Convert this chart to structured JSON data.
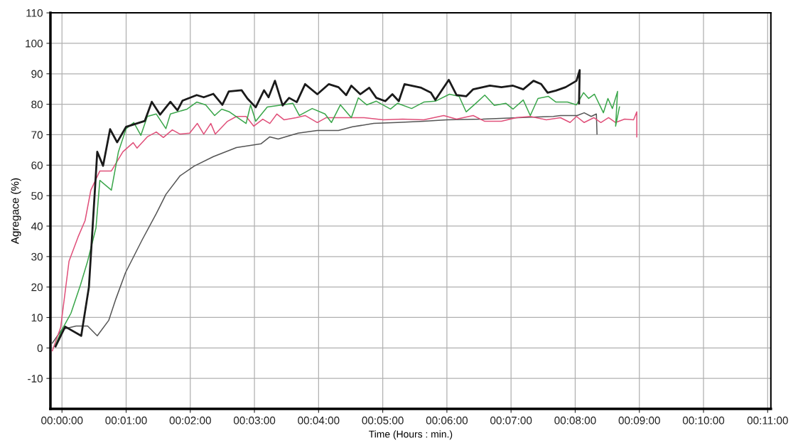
{
  "chart_data": {
    "type": "line",
    "xlabel": "Time (Hours : min.)",
    "ylabel": "Agregace (%)",
    "xlim": [
      -0.18,
      11.05
    ],
    "ylim": [
      -20,
      110
    ],
    "xticks": [
      {
        "value": 0,
        "label": "00:00:00"
      },
      {
        "value": 1,
        "label": "00:01:00"
      },
      {
        "value": 2,
        "label": "00:02:00"
      },
      {
        "value": 3,
        "label": "00:03:00"
      },
      {
        "value": 4,
        "label": "00:04:00"
      },
      {
        "value": 5,
        "label": "00:05:00"
      },
      {
        "value": 6,
        "label": "00:06:00"
      },
      {
        "value": 7,
        "label": "00:07:00"
      },
      {
        "value": 8,
        "label": "00:08:00"
      },
      {
        "value": 9,
        "label": "00:09:00"
      },
      {
        "value": 10,
        "label": "00:10:00"
      },
      {
        "value": 11,
        "label": "00:11:00"
      }
    ],
    "yticks": [
      -10,
      0,
      10,
      20,
      30,
      40,
      50,
      60,
      70,
      80,
      90,
      100,
      110
    ],
    "grid": true,
    "marker": "none",
    "line_style": "solid",
    "series": [
      {
        "color": "#555555",
        "x": [
          -0.15,
          0,
          0.22,
          0.4,
          0.55,
          0.73,
          0.84,
          0.99,
          1.25,
          1.47,
          1.62,
          1.84,
          2.06,
          2.36,
          2.72,
          3.1,
          3.24,
          3.37,
          3.68,
          3.98,
          4.31,
          4.53,
          4.86,
          5.23,
          5.64,
          6.0,
          6.56,
          7.11,
          7.66,
          7.77,
          8.03,
          8.14,
          8.25,
          8.33,
          8.34
        ],
        "values": [
          1.6,
          6.1,
          7.2,
          7.2,
          4,
          9.1,
          16.1,
          24.7,
          35.5,
          44.1,
          50.4,
          56.5,
          59.7,
          62.8,
          65.8,
          67,
          69.3,
          68.6,
          70.5,
          71.4,
          71.4,
          72.6,
          73.7,
          74,
          74.4,
          74.9,
          75.1,
          75.6,
          76,
          76.3,
          76.3,
          77.2,
          76,
          76.8,
          70.2
        ]
      },
      {
        "color": "#e0507a",
        "x": [
          -0.15,
          -0.02,
          0.11,
          0.25,
          0.36,
          0.45,
          0.59,
          0.77,
          0.95,
          1.11,
          1.17,
          1.33,
          1.47,
          1.58,
          1.72,
          1.84,
          1.99,
          2.11,
          2.21,
          2.32,
          2.39,
          2.58,
          2.72,
          2.87,
          2.99,
          3.13,
          3.24,
          3.35,
          3.46,
          3.65,
          3.79,
          3.98,
          4.12,
          4.49,
          4.71,
          5.01,
          5.31,
          5.64,
          5.95,
          6.15,
          6.41,
          6.59,
          6.85,
          7.08,
          7.3,
          7.55,
          7.77,
          7.92,
          8.02,
          8.14,
          8.29,
          8.4,
          8.52,
          8.63,
          8.77,
          8.91,
          8.96,
          8.96
        ],
        "values": [
          -0.9,
          6.8,
          28.5,
          36.4,
          41.8,
          51.8,
          58.1,
          58.1,
          64.4,
          67.4,
          65.6,
          69.3,
          70.9,
          69.1,
          71.6,
          70.2,
          70.5,
          73.7,
          70.2,
          73.7,
          70.2,
          74.4,
          76,
          76,
          72.8,
          75.1,
          73.7,
          76.8,
          74.9,
          75.6,
          76.3,
          74,
          75.6,
          75.6,
          75.6,
          74.9,
          75.1,
          74.9,
          76.3,
          75.1,
          76.3,
          74.4,
          74.4,
          75.6,
          76,
          74.9,
          75.6,
          74,
          76,
          74,
          75.6,
          74,
          75.6,
          74,
          75.1,
          74.9,
          77.5,
          69.3
        ]
      },
      {
        "color": "#3aa64a",
        "x": [
          -0.1,
          0,
          0.14,
          0.29,
          0.4,
          0.53,
          0.59,
          0.77,
          0.88,
          1.0,
          1.12,
          1.23,
          1.33,
          1.47,
          1.62,
          1.69,
          1.95,
          2.1,
          2.24,
          2.38,
          2.49,
          2.61,
          2.87,
          2.94,
          3.02,
          3.2,
          3.38,
          3.6,
          3.7,
          3.9,
          4.1,
          4.2,
          4.34,
          4.51,
          4.62,
          4.75,
          4.9,
          5.12,
          5.23,
          5.45,
          5.64,
          5.82,
          6.04,
          6.19,
          6.3,
          6.45,
          6.59,
          6.74,
          6.92,
          7.03,
          7.19,
          7.3,
          7.42,
          7.58,
          7.7,
          7.88,
          8.02,
          8.13,
          8.21,
          8.3,
          8.44,
          8.51,
          8.58,
          8.66,
          8.63,
          8.69
        ],
        "values": [
          1,
          6,
          11.4,
          20.8,
          28.5,
          39.4,
          55,
          51.8,
          64.4,
          72,
          74,
          69.8,
          76,
          76.8,
          72,
          76.8,
          78.4,
          80.7,
          79.8,
          76.3,
          78.4,
          77.5,
          73.7,
          79.8,
          74.4,
          79.1,
          79.6,
          80.3,
          76.3,
          78.6,
          76.8,
          74,
          79.8,
          75.6,
          82.1,
          79.8,
          81,
          78.4,
          80.3,
          78.6,
          80.7,
          81,
          83.3,
          82.6,
          77.5,
          80.3,
          83,
          79.6,
          80.3,
          78.4,
          81.4,
          76.3,
          81.9,
          82.6,
          80.7,
          80.7,
          79.8,
          83.8,
          81.9,
          83.3,
          77.2,
          81.9,
          78.6,
          84.2,
          72.8,
          79.1
        ]
      },
      {
        "color": "#1a1a1a",
        "x": [
          -0.1,
          0.05,
          0.3,
          0.42,
          0.55,
          0.64,
          0.75,
          0.86,
          1.0,
          1.29,
          1.4,
          1.53,
          1.69,
          1.8,
          1.88,
          2.1,
          2.21,
          2.36,
          2.5,
          2.6,
          2.8,
          2.89,
          3.02,
          3.15,
          3.22,
          3.32,
          3.44,
          3.54,
          3.66,
          3.79,
          3.98,
          4.16,
          4.31,
          4.43,
          4.51,
          4.65,
          4.79,
          4.9,
          5.04,
          5.15,
          5.25,
          5.34,
          5.6,
          5.75,
          5.82,
          6.03,
          6.15,
          6.3,
          6.41,
          6.67,
          6.85,
          7.03,
          7.19,
          7.35,
          7.47,
          7.57,
          7.7,
          7.85,
          8.02,
          8.07,
          8.06
        ],
        "values": [
          0.5,
          7,
          4,
          20,
          64.4,
          59.8,
          71.8,
          67.5,
          72.6,
          74.5,
          80.8,
          76.6,
          80.8,
          78,
          81.2,
          83,
          82.3,
          83.4,
          79.8,
          84.2,
          84.6,
          81.9,
          79,
          84.6,
          82.3,
          87.7,
          79.6,
          82.1,
          80.7,
          86.6,
          83.3,
          86.6,
          85.6,
          83,
          86.1,
          83.3,
          85.4,
          82.1,
          81,
          83.3,
          81,
          86.6,
          85.4,
          83.8,
          81.4,
          88,
          83,
          82.6,
          84.9,
          86.1,
          85.6,
          86.1,
          84.9,
          87.7,
          86.6,
          83.8,
          84.5,
          85.6,
          87.7,
          91.2,
          80.3
        ]
      }
    ]
  }
}
